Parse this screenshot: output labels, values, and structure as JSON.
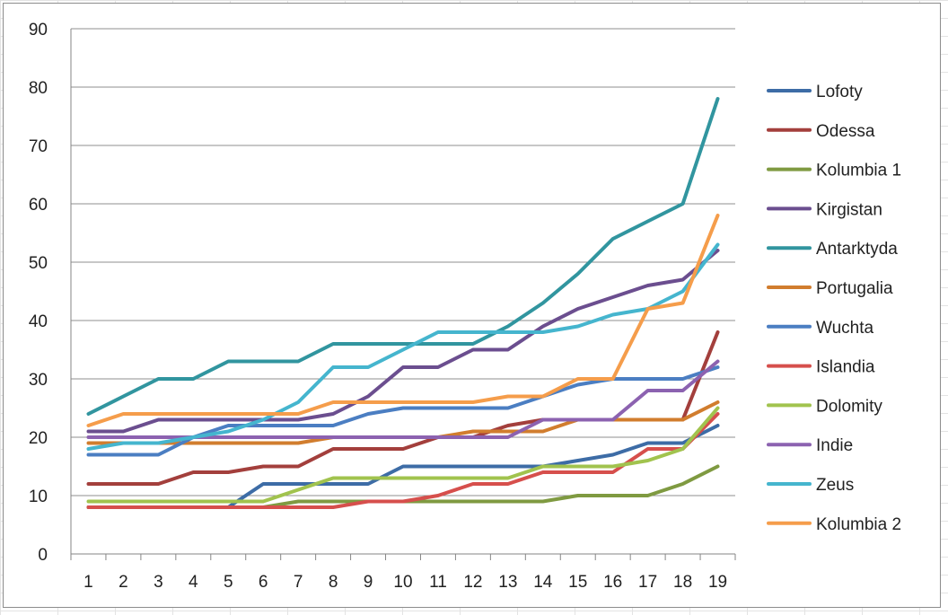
{
  "chart_data": {
    "type": "line",
    "title": "",
    "xlabel": "",
    "ylabel": "",
    "categories": [
      "1",
      "2",
      "3",
      "4",
      "5",
      "6",
      "7",
      "8",
      "9",
      "10",
      "11",
      "12",
      "13",
      "14",
      "15",
      "16",
      "17",
      "18",
      "19"
    ],
    "ylim": [
      0,
      90
    ],
    "yticks": [
      "0",
      "10",
      "20",
      "30",
      "40",
      "50",
      "60",
      "70",
      "80",
      "90"
    ],
    "grid": "horizontal major gridlines",
    "legend_position": "right",
    "series": [
      {
        "name": "Lofoty",
        "color": "#3D6CA6",
        "values": [
          8,
          8,
          8,
          8,
          8,
          12,
          12,
          12,
          12,
          15,
          15,
          15,
          15,
          15,
          16,
          17,
          19,
          19,
          22
        ]
      },
      {
        "name": "Odessa",
        "color": "#A33F3C",
        "values": [
          12,
          12,
          12,
          14,
          14,
          15,
          15,
          18,
          18,
          18,
          20,
          20,
          22,
          23,
          23,
          23,
          23,
          23,
          38
        ]
      },
      {
        "name": "Kolumbia 1",
        "color": "#7F9A41",
        "values": [
          8,
          8,
          8,
          8,
          8,
          8,
          9,
          9,
          9,
          9,
          9,
          9,
          9,
          9,
          10,
          10,
          10,
          12,
          15
        ]
      },
      {
        "name": "Kirgistan",
        "color": "#6B4E8F",
        "values": [
          21,
          21,
          23,
          23,
          23,
          23,
          23,
          24,
          27,
          32,
          32,
          35,
          35,
          39,
          42,
          44,
          46,
          47,
          52
        ]
      },
      {
        "name": "Antarktyda",
        "color": "#31959F",
        "values": [
          24,
          27,
          30,
          30,
          33,
          33,
          33,
          36,
          36,
          36,
          36,
          36,
          39,
          43,
          48,
          54,
          57,
          60,
          78
        ]
      },
      {
        "name": "Portugalia",
        "color": "#D17D2E",
        "values": [
          19,
          19,
          19,
          19,
          19,
          19,
          19,
          20,
          20,
          20,
          20,
          21,
          21,
          21,
          23,
          23,
          23,
          23,
          26
        ]
      },
      {
        "name": "Wuchta",
        "color": "#4B7EC2",
        "values": [
          17,
          17,
          17,
          20,
          22,
          22,
          22,
          22,
          24,
          25,
          25,
          25,
          25,
          27,
          29,
          30,
          30,
          30,
          32
        ]
      },
      {
        "name": "Islandia",
        "color": "#D64F4C",
        "values": [
          8,
          8,
          8,
          8,
          8,
          8,
          8,
          8,
          9,
          9,
          10,
          12,
          12,
          14,
          14,
          14,
          18,
          18,
          24
        ]
      },
      {
        "name": "Dolomity",
        "color": "#A1C34E",
        "values": [
          9,
          9,
          9,
          9,
          9,
          9,
          11,
          13,
          13,
          13,
          13,
          13,
          13,
          15,
          15,
          15,
          16,
          18,
          25
        ]
      },
      {
        "name": "Indie",
        "color": "#8C62B0",
        "values": [
          20,
          20,
          20,
          20,
          20,
          20,
          20,
          20,
          20,
          20,
          20,
          20,
          20,
          23,
          23,
          23,
          28,
          28,
          33
        ]
      },
      {
        "name": "Zeus",
        "color": "#45B5CE",
        "values": [
          18,
          19,
          19,
          20,
          21,
          23,
          26,
          32,
          32,
          35,
          38,
          38,
          38,
          38,
          39,
          41,
          42,
          45,
          53
        ]
      },
      {
        "name": "Kolumbia 2",
        "color": "#F59D4B",
        "values": [
          22,
          24,
          24,
          24,
          24,
          24,
          24,
          26,
          26,
          26,
          26,
          26,
          27,
          27,
          30,
          30,
          42,
          43,
          58
        ]
      }
    ]
  }
}
